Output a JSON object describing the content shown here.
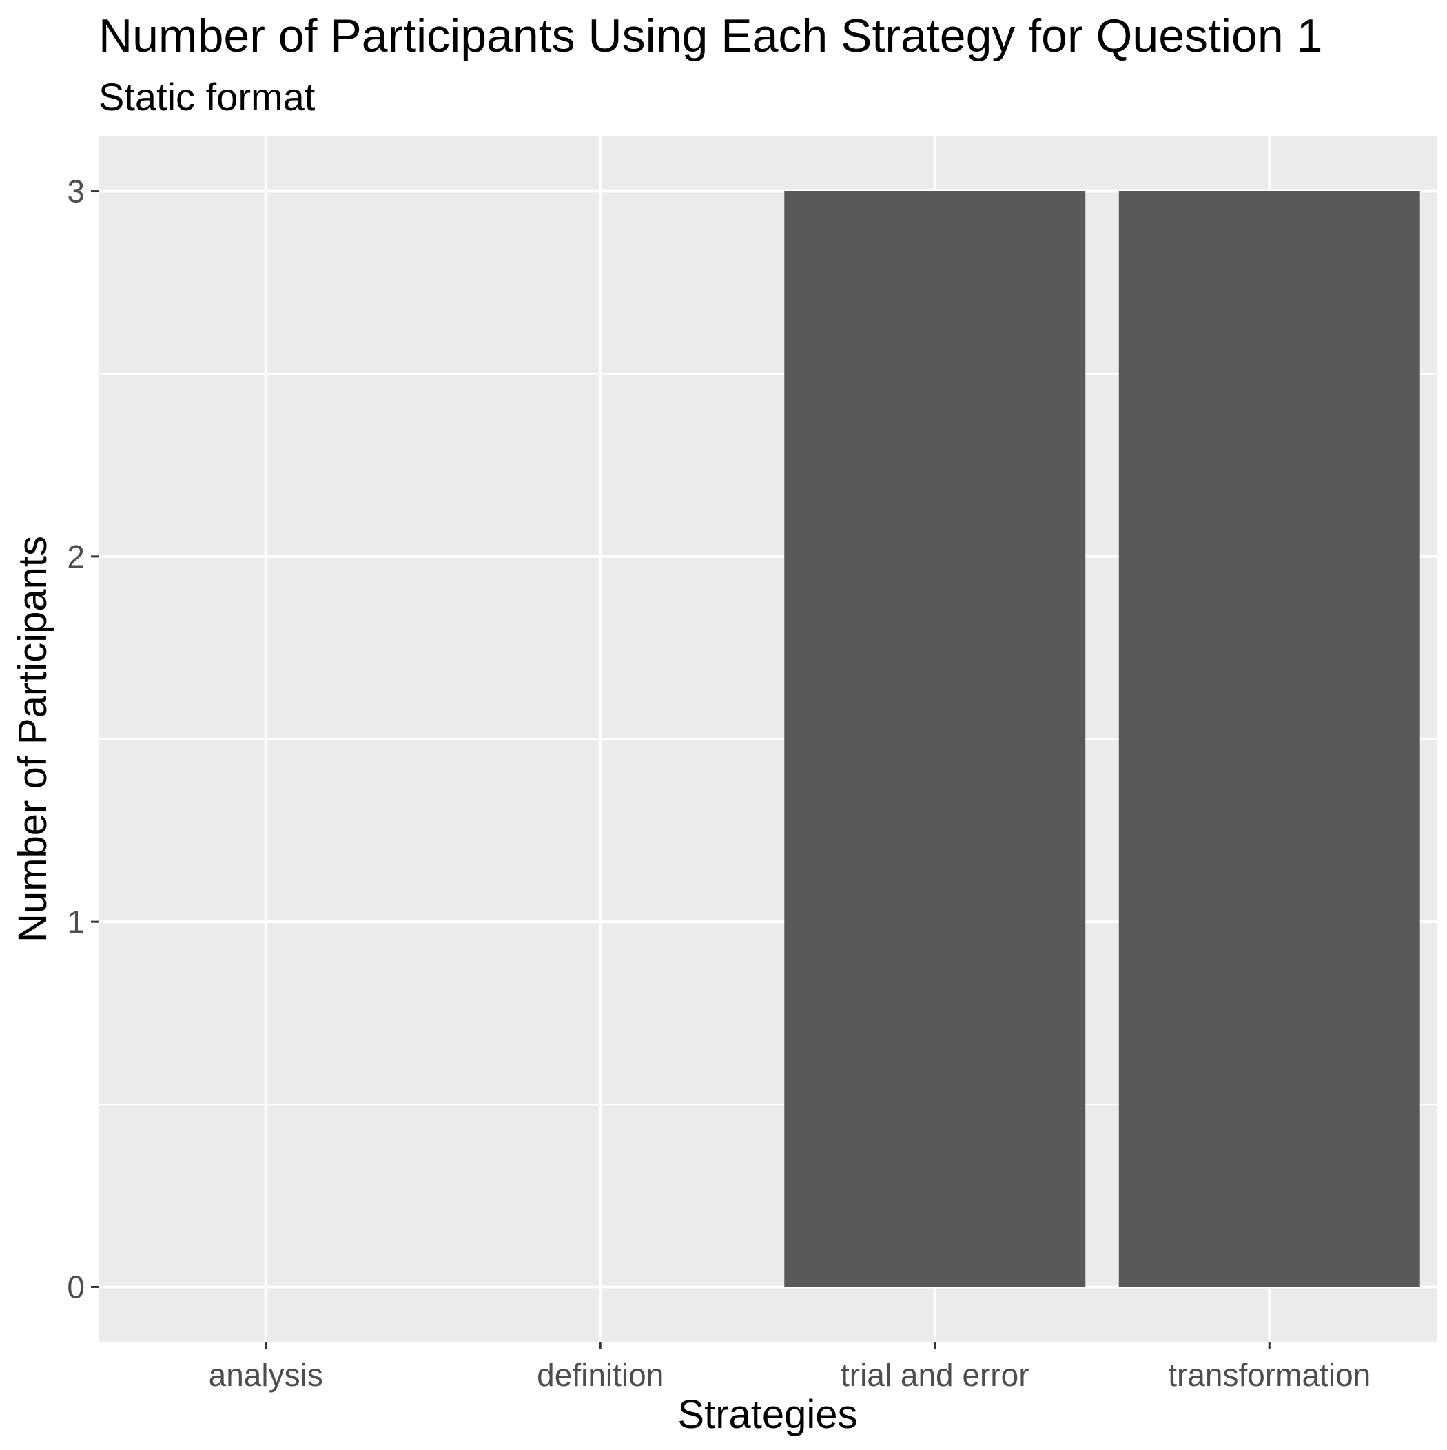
{
  "chart_data": {
    "type": "bar",
    "title": "Number of Participants Using Each Strategy for Question 1",
    "subtitle": "Static format",
    "xlabel": "Strategies",
    "ylabel": "Number of Participants",
    "categories": [
      "analysis",
      "definition",
      "trial and error",
      "transformation"
    ],
    "values": [
      0,
      0,
      3,
      3
    ],
    "ylim": [
      -0.15,
      3.15
    ],
    "yticks": [
      0,
      1,
      2,
      3
    ],
    "grid": true,
    "legend": "none",
    "colors": {
      "panel": "#EBEBEB",
      "bar": "#595959",
      "grid": "#FFFFFF",
      "text": "#000000",
      "tick_text": "#4D4D4D",
      "tick": "#333333"
    }
  }
}
